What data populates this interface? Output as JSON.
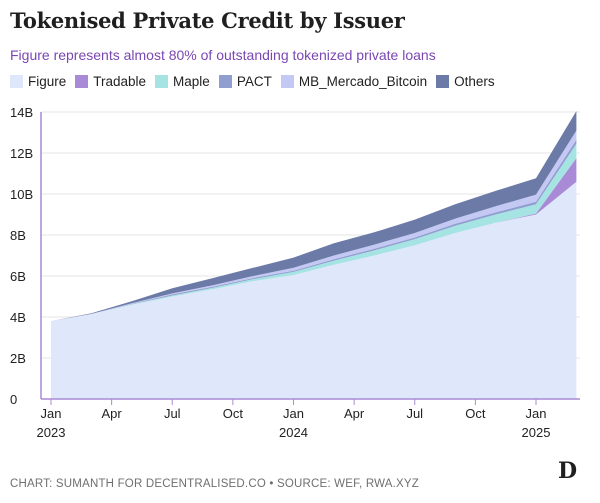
{
  "chart_data": {
    "type": "area",
    "stacked": true,
    "title": "Tokenised Private Credit by Issuer",
    "subtitle": "Figure represents almost 80% of outstanding tokenized private loans",
    "xlabel": "",
    "ylabel": "",
    "ylim": [
      0,
      14
    ],
    "y_ticks": [
      "0",
      "2B",
      "4B",
      "6B",
      "8B",
      "10B",
      "12B",
      "14B"
    ],
    "x_ticks": [
      {
        "month": "Jan",
        "year": "2023"
      },
      {
        "month": "Apr",
        "year": ""
      },
      {
        "month": "Jul",
        "year": ""
      },
      {
        "month": "Oct",
        "year": ""
      },
      {
        "month": "Jan",
        "year": "2024"
      },
      {
        "month": "Apr",
        "year": ""
      },
      {
        "month": "Jul",
        "year": ""
      },
      {
        "month": "Oct",
        "year": ""
      },
      {
        "month": "Jan",
        "year": "2025"
      }
    ],
    "x": [
      "2023-01",
      "2023-03",
      "2023-05",
      "2023-07",
      "2023-09",
      "2023-11",
      "2024-01",
      "2024-03",
      "2024-05",
      "2024-07",
      "2024-09",
      "2024-11",
      "2025-01",
      "2025-03"
    ],
    "legend_position": "top",
    "series": [
      {
        "name": "Figure",
        "color": "#dfe7fb",
        "values": [
          3.8,
          4.15,
          4.6,
          5.0,
          5.35,
          5.75,
          6.05,
          6.55,
          7.0,
          7.5,
          8.1,
          8.6,
          9.0,
          10.6
        ]
      },
      {
        "name": "Tradable",
        "color": "#a98ad6",
        "values": [
          0.0,
          0.0,
          0.0,
          0.0,
          0.0,
          0.0,
          0.0,
          0.0,
          0.0,
          0.0,
          0.0,
          0.0,
          0.05,
          1.15
        ]
      },
      {
        "name": "Maple",
        "color": "#a6e3e3",
        "values": [
          0.0,
          0.0,
          0.02,
          0.05,
          0.08,
          0.1,
          0.15,
          0.2,
          0.25,
          0.3,
          0.35,
          0.4,
          0.45,
          0.7
        ]
      },
      {
        "name": "PACT",
        "color": "#909ed0",
        "values": [
          0.0,
          0.0,
          0.02,
          0.05,
          0.05,
          0.05,
          0.06,
          0.07,
          0.08,
          0.08,
          0.1,
          0.1,
          0.12,
          0.2
        ]
      },
      {
        "name": "MB_Mercado_Bitcoin",
        "color": "#c3c9f3",
        "values": [
          0.0,
          0.0,
          0.03,
          0.05,
          0.07,
          0.1,
          0.14,
          0.18,
          0.2,
          0.22,
          0.25,
          0.3,
          0.35,
          0.45
        ]
      },
      {
        "name": "Others",
        "color": "#6c7aa7",
        "values": [
          0.0,
          0.03,
          0.1,
          0.25,
          0.35,
          0.4,
          0.5,
          0.6,
          0.6,
          0.65,
          0.7,
          0.75,
          0.8,
          0.95
        ]
      }
    ]
  },
  "footer": {
    "credit": "CHART: SUMANTH FOR DECENTRALISED.CO • SOURCE: WEF, RWA.XYZ",
    "logo": "D"
  }
}
